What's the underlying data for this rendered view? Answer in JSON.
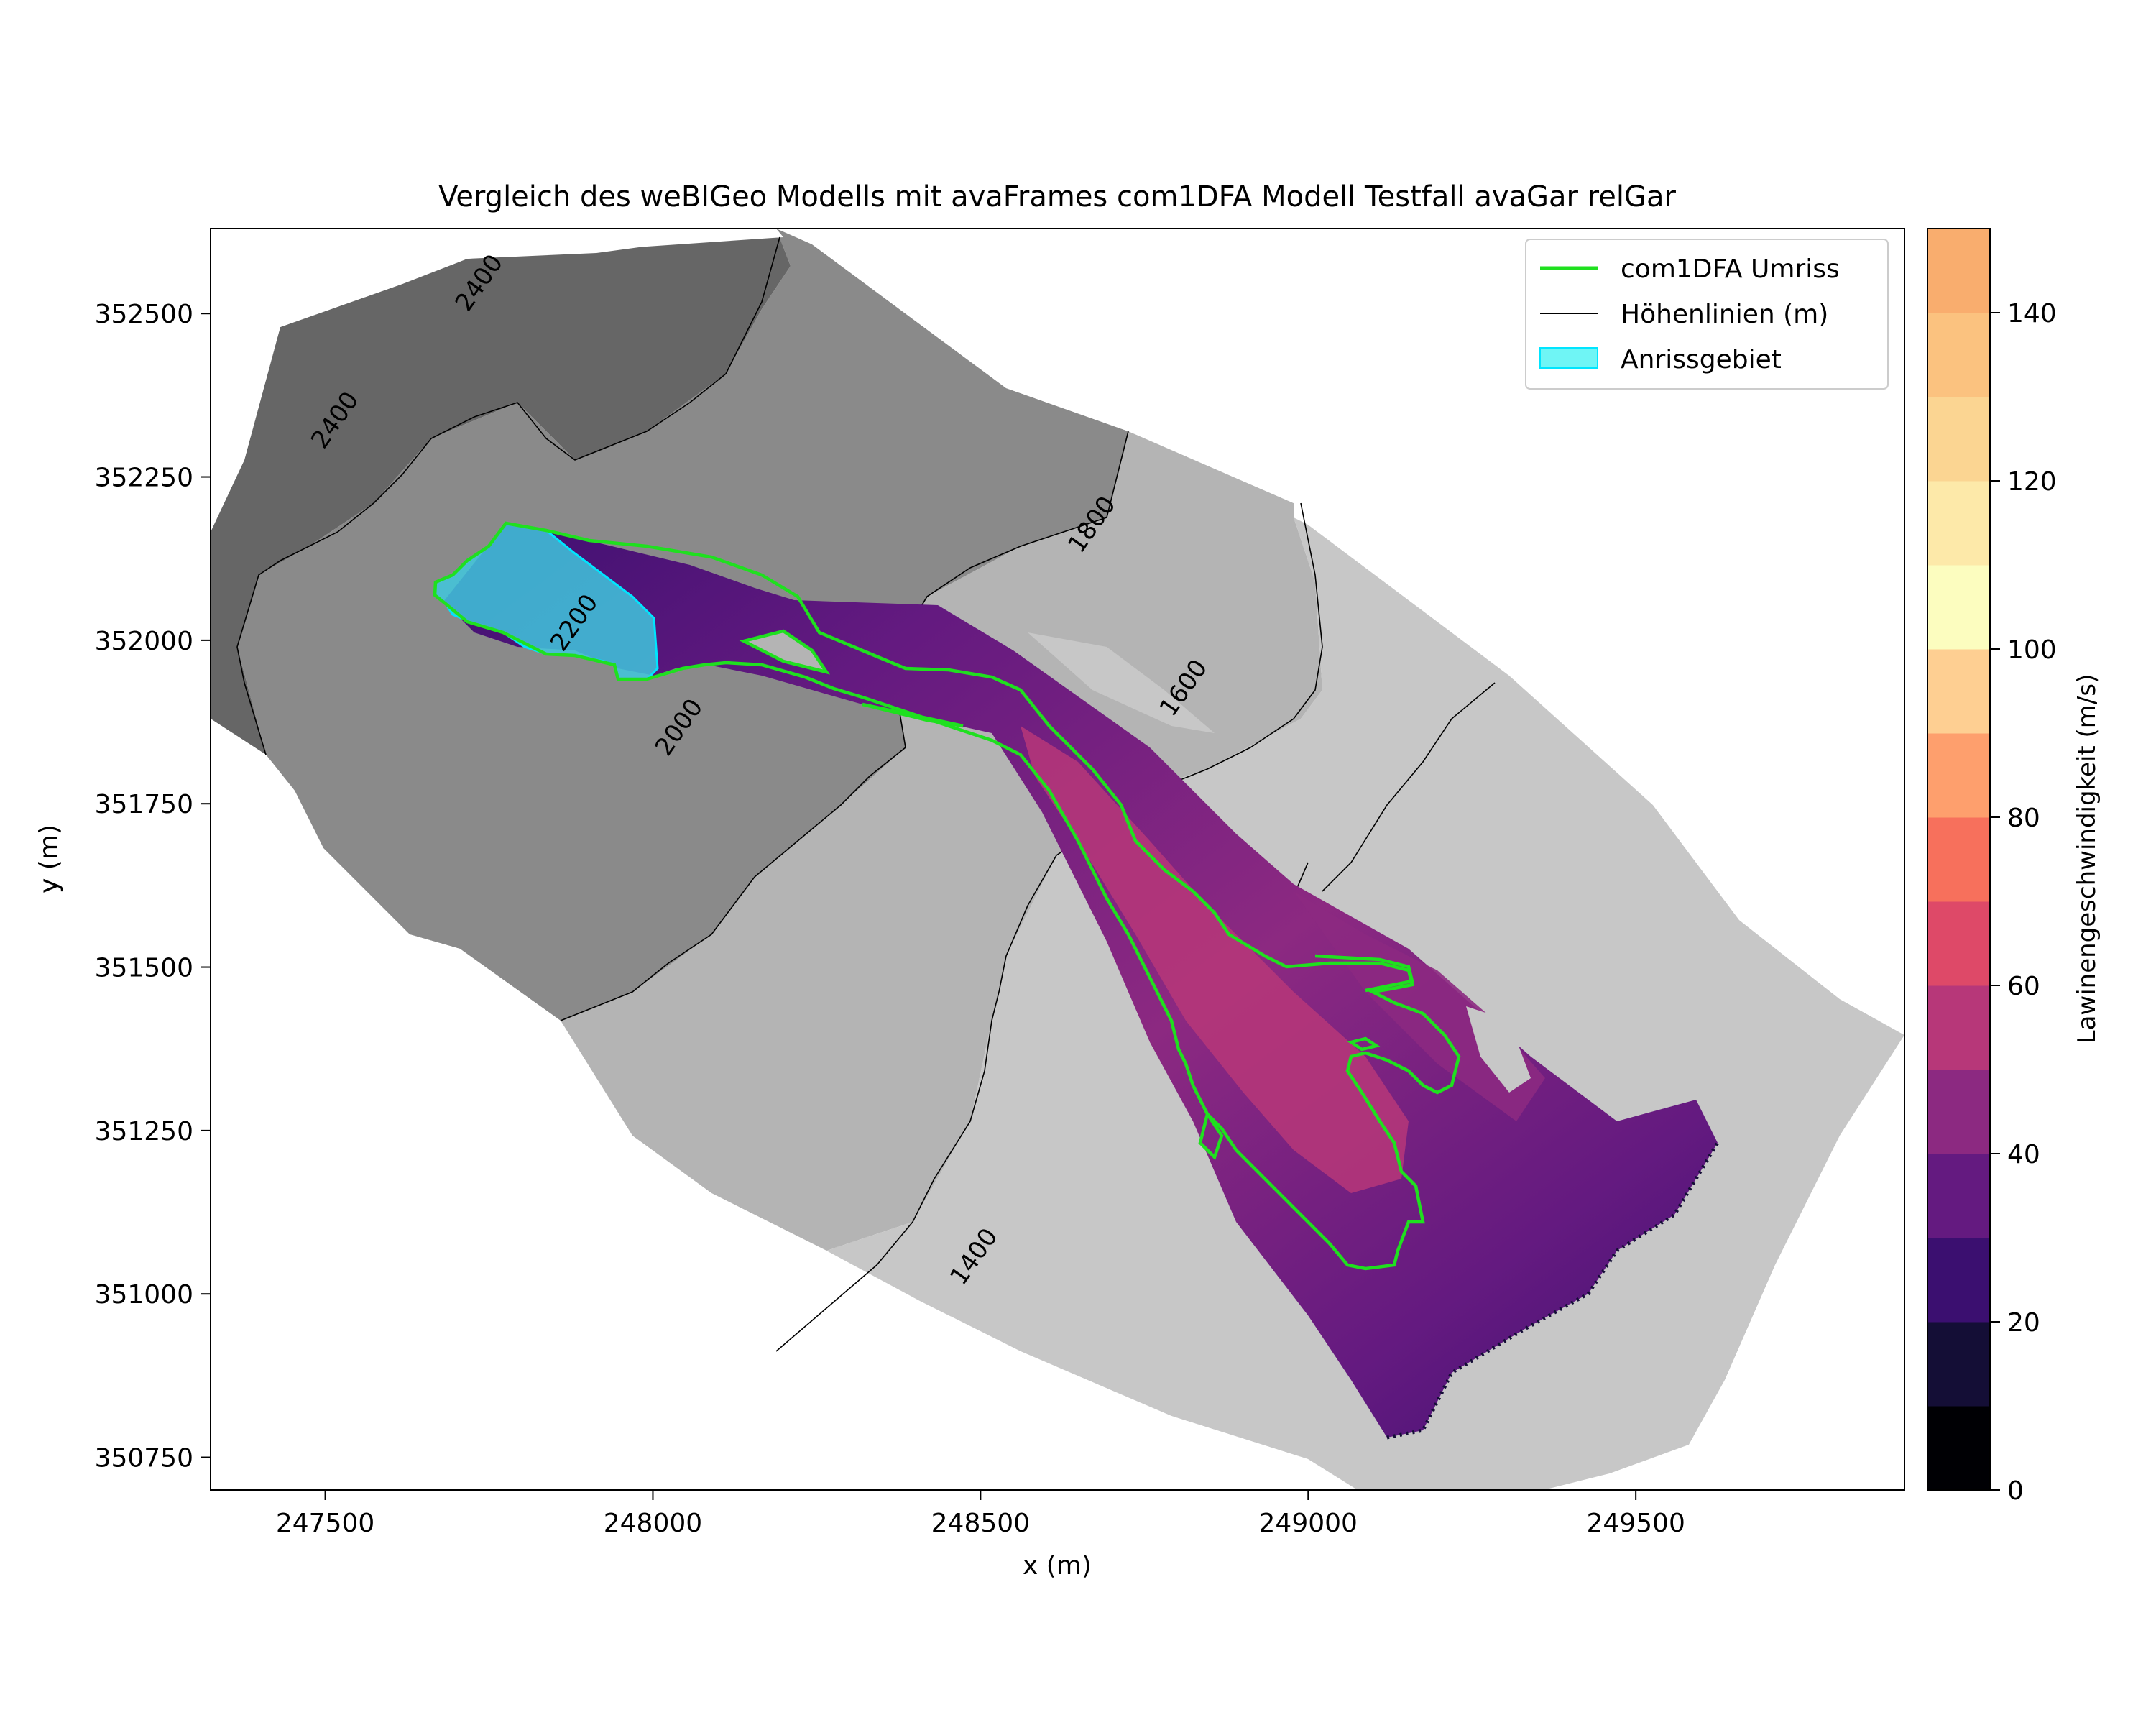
{
  "chart_data": {
    "type": "heatmap",
    "title": "Vergleich des weBIGeo Modells mit avaFrames com1DFA Modell Testfall avaGar relGar",
    "xlabel": "x (m)",
    "ylabel": "y (m)",
    "xlim": [
      247325,
      249910
    ],
    "ylim": [
      350700,
      352630
    ],
    "x_ticks": [
      {
        "value": 247500,
        "label": "247500"
      },
      {
        "value": 248000,
        "label": "248000"
      },
      {
        "value": 248500,
        "label": "248500"
      },
      {
        "value": 249000,
        "label": "249000"
      },
      {
        "value": 249500,
        "label": "249500"
      }
    ],
    "y_ticks": [
      {
        "value": 350750,
        "label": "350750"
      },
      {
        "value": 351000,
        "label": "351000"
      },
      {
        "value": 351250,
        "label": "351250"
      },
      {
        "value": 351500,
        "label": "351500"
      },
      {
        "value": 351750,
        "label": "351750"
      },
      {
        "value": 352000,
        "label": "352000"
      },
      {
        "value": 352250,
        "label": "352250"
      },
      {
        "value": 352500,
        "label": "352500"
      }
    ],
    "colorbar": {
      "label": "Lawinengeschwindigkeit (m/s)",
      "range": [
        0,
        150
      ],
      "levels": [
        0,
        10,
        20,
        30,
        40,
        50,
        60,
        70,
        80,
        90,
        100,
        110,
        120,
        130,
        140,
        150
      ],
      "colors": [
        "#000004",
        "#140e36",
        "#3b0f70",
        "#641a80",
        "#8c2981",
        "#b73779",
        "#de4968",
        "#f7705c",
        "#fe9f6d",
        "#fecf92",
        "#fcfdbf",
        "#fde9a9",
        "#fbd592",
        "#fbc27f",
        "#f9ad6e"
      ],
      "ticks": [
        {
          "value": 0,
          "label": "0"
        },
        {
          "value": 20,
          "label": "20"
        },
        {
          "value": 40,
          "label": "40"
        },
        {
          "value": 60,
          "label": "60"
        },
        {
          "value": 80,
          "label": "80"
        },
        {
          "value": 100,
          "label": "100"
        },
        {
          "value": 120,
          "label": "120"
        },
        {
          "value": 140,
          "label": "140"
        }
      ]
    },
    "contour_labels": [
      {
        "text": "2400",
        "x": 247745,
        "y": 352540
      },
      {
        "text": "2400",
        "x": 247525,
        "y": 352330
      },
      {
        "text": "1800",
        "x": 248680,
        "y": 352170
      },
      {
        "text": "2200",
        "x": 247890,
        "y": 352020
      },
      {
        "text": "1600",
        "x": 248820,
        "y": 351920
      },
      {
        "text": "2000",
        "x": 248050,
        "y": 351860
      },
      {
        "text": "1400",
        "x": 248500,
        "y": 351050
      }
    ],
    "legend": {
      "position": "top-right",
      "entries": [
        {
          "label": "com1DFA Umriss",
          "kind": "line",
          "color": "#1fe01f"
        },
        {
          "label": "Höhenlinien (m)",
          "kind": "line",
          "color": "#000000"
        },
        {
          "label": "Anrissgebiet",
          "kind": "patch",
          "color": "#6ff5f5"
        }
      ]
    },
    "grid": false,
    "colors": {
      "terrain_high": "#666666",
      "terrain_mid": "#8a8a8a",
      "terrain_low": "#b4b4b4",
      "terrain_lowest": "#c7c7c7",
      "outline": "#1fe01f",
      "release_area": "#3fc7dd"
    }
  }
}
